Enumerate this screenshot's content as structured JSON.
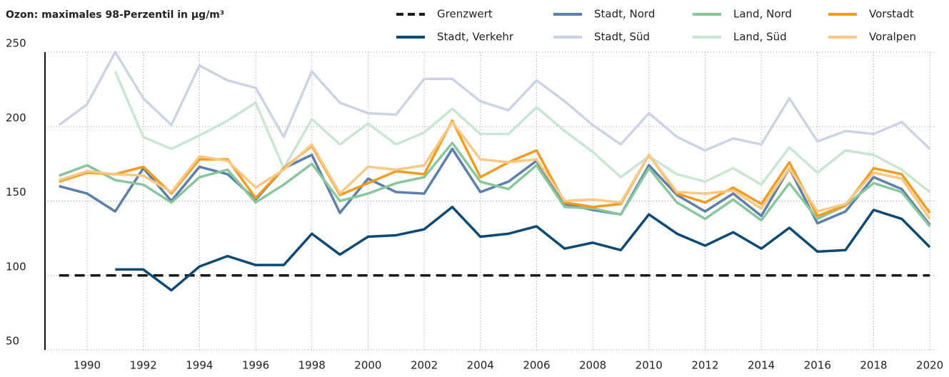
{
  "chart_data": {
    "type": "line",
    "title": "Ozon: maximales 98-Perzentil in µg/m³",
    "x": [
      1989,
      1990,
      1991,
      1992,
      1993,
      1994,
      1995,
      1996,
      1997,
      1998,
      1999,
      2000,
      2001,
      2002,
      2003,
      2004,
      2005,
      2006,
      2007,
      2008,
      2009,
      2010,
      2011,
      2012,
      2013,
      2014,
      2015,
      2016,
      2017,
      2018,
      2019,
      2020
    ],
    "xlim": [
      1988.5,
      2020.2
    ],
    "xticks": [
      1990,
      1992,
      1994,
      1996,
      1998,
      2000,
      2002,
      2004,
      2006,
      2008,
      2010,
      2012,
      2014,
      2016,
      2018,
      2020
    ],
    "ylim": [
      50,
      250
    ],
    "yticks": [
      50,
      100,
      150,
      200,
      250
    ],
    "grid": true,
    "series": [
      {
        "name": "Grenzwert",
        "color": "#1a1a1a",
        "dashed": true,
        "values": [
          100,
          100,
          100,
          100,
          100,
          100,
          100,
          100,
          100,
          100,
          100,
          100,
          100,
          100,
          100,
          100,
          100,
          100,
          100,
          100,
          100,
          100,
          100,
          100,
          100,
          100,
          100,
          100,
          100,
          100,
          100,
          100
        ]
      },
      {
        "name": "Stadt, Verkehr",
        "color": "#0b4a75",
        "values": [
          null,
          null,
          104,
          104,
          90,
          106,
          113,
          107,
          107,
          128,
          114,
          126,
          127,
          131,
          146,
          126,
          128,
          133,
          118,
          122,
          117,
          141,
          128,
          120,
          129,
          118,
          132,
          116,
          117,
          144,
          138,
          119
        ]
      },
      {
        "name": "Stadt, Nord",
        "color": "#5d7fac",
        "values": [
          160,
          155,
          143,
          172,
          150,
          173,
          168,
          151,
          172,
          181,
          142,
          165,
          156,
          155,
          185,
          156,
          163,
          177,
          148,
          144,
          141,
          174,
          154,
          143,
          155,
          140,
          172,
          135,
          143,
          166,
          158,
          134
        ]
      },
      {
        "name": "Stadt, Süd",
        "color": "#cbd4e6",
        "values": [
          201,
          215,
          250,
          219,
          201,
          241,
          231,
          226,
          193,
          237,
          216,
          209,
          208,
          232,
          232,
          217,
          211,
          231,
          217,
          201,
          188,
          209,
          193,
          184,
          192,
          188,
          219,
          190,
          197,
          195,
          203,
          185
        ]
      },
      {
        "name": "Land, Nord",
        "color": "#88c69c",
        "values": [
          167,
          174,
          164,
          161,
          149,
          166,
          171,
          149,
          161,
          175,
          150,
          155,
          162,
          166,
          189,
          163,
          158,
          174,
          146,
          145,
          141,
          172,
          149,
          138,
          151,
          137,
          162,
          138,
          147,
          162,
          156,
          133
        ]
      },
      {
        "name": "Land, Süd",
        "color": "#c8e7d1",
        "values": [
          null,
          null,
          237,
          193,
          185,
          194,
          204,
          216,
          172,
          205,
          188,
          202,
          188,
          196,
          212,
          195,
          195,
          213,
          197,
          183,
          166,
          180,
          168,
          163,
          172,
          161,
          186,
          169,
          184,
          181,
          171,
          156
        ]
      },
      {
        "name": "Vorstadt",
        "color": "#f29c1f",
        "values": [
          163,
          169,
          168,
          173,
          155,
          178,
          178,
          152,
          172,
          187,
          154,
          162,
          170,
          168,
          204,
          166,
          176,
          184,
          149,
          146,
          148,
          181,
          155,
          149,
          159,
          148,
          176,
          140,
          147,
          172,
          168,
          142
        ]
      },
      {
        "name": "Voralpen",
        "color": "#f9c884",
        "values": [
          164,
          170,
          168,
          167,
          156,
          180,
          177,
          159,
          171,
          188,
          155,
          173,
          171,
          174,
          203,
          178,
          176,
          178,
          150,
          151,
          149,
          181,
          156,
          155,
          157,
          145,
          172,
          143,
          148,
          169,
          165,
          138
        ]
      }
    ]
  }
}
